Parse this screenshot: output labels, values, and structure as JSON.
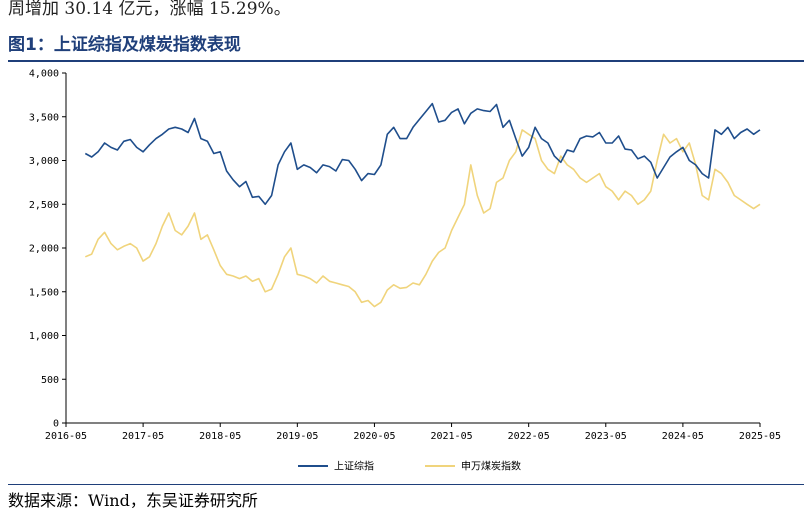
{
  "header": {
    "top_text": "周增加 30.14 亿元，涨幅 15.29%。",
    "figure_title": "图1：上证综指及煤炭指数表现"
  },
  "footer": {
    "source": "数据来源：Wind，东吴证券研究所"
  },
  "chart_data": {
    "type": "line",
    "title": "",
    "xlabel": "",
    "ylabel": "",
    "ylim": [
      0,
      4000
    ],
    "yticks": [
      "0",
      "500",
      "1,000",
      "1,500",
      "2,000",
      "2,500",
      "3,000",
      "3,500",
      "4,000"
    ],
    "xticks": [
      "2016-05",
      "2017-05",
      "2018-05",
      "2019-05",
      "2020-05",
      "2021-05",
      "2022-05",
      "2023-05",
      "2024-05",
      "2025-05"
    ],
    "xlim": [
      "2016-05",
      "2025-05"
    ],
    "grid": false,
    "legend": "bottom",
    "series": [
      {
        "name": "上证综指",
        "color": "#1f4e8c",
        "x": [
          "2016-08",
          "2016-09",
          "2016-10",
          "2016-11",
          "2016-12",
          "2017-01",
          "2017-02",
          "2017-03",
          "2017-04",
          "2017-05",
          "2017-06",
          "2017-07",
          "2017-08",
          "2017-09",
          "2017-10",
          "2017-11",
          "2017-12",
          "2018-01",
          "2018-02",
          "2018-03",
          "2018-04",
          "2018-05",
          "2018-06",
          "2018-07",
          "2018-08",
          "2018-09",
          "2018-10",
          "2018-11",
          "2018-12",
          "2019-01",
          "2019-02",
          "2019-03",
          "2019-04",
          "2019-05",
          "2019-06",
          "2019-07",
          "2019-08",
          "2019-09",
          "2019-10",
          "2019-11",
          "2019-12",
          "2020-01",
          "2020-02",
          "2020-03",
          "2020-04",
          "2020-05",
          "2020-06",
          "2020-07",
          "2020-08",
          "2020-09",
          "2020-10",
          "2020-11",
          "2020-12",
          "2021-01",
          "2021-02",
          "2021-03",
          "2021-04",
          "2021-05",
          "2021-06",
          "2021-07",
          "2021-08",
          "2021-09",
          "2021-10",
          "2021-11",
          "2021-12",
          "2022-01",
          "2022-02",
          "2022-03",
          "2022-04",
          "2022-05",
          "2022-06",
          "2022-07",
          "2022-08",
          "2022-09",
          "2022-10",
          "2022-11",
          "2022-12",
          "2023-01",
          "2023-02",
          "2023-03",
          "2023-04",
          "2023-05",
          "2023-06",
          "2023-07",
          "2023-08",
          "2023-09",
          "2023-10",
          "2023-11",
          "2023-12",
          "2024-01",
          "2024-02",
          "2024-03",
          "2024-04",
          "2024-05",
          "2024-06",
          "2024-07",
          "2024-08",
          "2024-09",
          "2024-10",
          "2024-11",
          "2024-12",
          "2025-01",
          "2025-02",
          "2025-03",
          "2025-04",
          "2025-05"
        ],
        "values": [
          3080,
          3040,
          3100,
          3200,
          3150,
          3120,
          3220,
          3240,
          3150,
          3100,
          3180,
          3250,
          3300,
          3360,
          3380,
          3360,
          3320,
          3480,
          3250,
          3220,
          3080,
          3100,
          2880,
          2780,
          2700,
          2760,
          2580,
          2590,
          2500,
          2600,
          2950,
          3100,
          3200,
          2900,
          2950,
          2920,
          2860,
          2950,
          2930,
          2880,
          3010,
          3000,
          2900,
          2770,
          2850,
          2840,
          2950,
          3300,
          3380,
          3250,
          3250,
          3380,
          3470,
          3560,
          3650,
          3440,
          3460,
          3550,
          3590,
          3420,
          3540,
          3590,
          3570,
          3560,
          3640,
          3380,
          3460,
          3250,
          3050,
          3150,
          3380,
          3250,
          3200,
          3050,
          2980,
          3120,
          3100,
          3250,
          3280,
          3270,
          3320,
          3200,
          3200,
          3280,
          3130,
          3120,
          3020,
          3050,
          2980,
          2800,
          2920,
          3040,
          3100,
          3150,
          3000,
          2950,
          2850,
          2800,
          3350,
          3300,
          3380,
          3250,
          3320,
          3360,
          3300,
          3350
        ]
      },
      {
        "name": "申万煤炭指数",
        "color": "#f0d47c",
        "x": [
          "2016-08",
          "2016-09",
          "2016-10",
          "2016-11",
          "2016-12",
          "2017-01",
          "2017-02",
          "2017-03",
          "2017-04",
          "2017-05",
          "2017-06",
          "2017-07",
          "2017-08",
          "2017-09",
          "2017-10",
          "2017-11",
          "2017-12",
          "2018-01",
          "2018-02",
          "2018-03",
          "2018-04",
          "2018-05",
          "2018-06",
          "2018-07",
          "2018-08",
          "2018-09",
          "2018-10",
          "2018-11",
          "2018-12",
          "2019-01",
          "2019-02",
          "2019-03",
          "2019-04",
          "2019-05",
          "2019-06",
          "2019-07",
          "2019-08",
          "2019-09",
          "2019-10",
          "2019-11",
          "2019-12",
          "2020-01",
          "2020-02",
          "2020-03",
          "2020-04",
          "2020-05",
          "2020-06",
          "2020-07",
          "2020-08",
          "2020-09",
          "2020-10",
          "2020-11",
          "2020-12",
          "2021-01",
          "2021-02",
          "2021-03",
          "2021-04",
          "2021-05",
          "2021-06",
          "2021-07",
          "2021-08",
          "2021-09",
          "2021-10",
          "2021-11",
          "2021-12",
          "2022-01",
          "2022-02",
          "2022-03",
          "2022-04",
          "2022-05",
          "2022-06",
          "2022-07",
          "2022-08",
          "2022-09",
          "2022-10",
          "2022-11",
          "2022-12",
          "2023-01",
          "2023-02",
          "2023-03",
          "2023-04",
          "2023-05",
          "2023-06",
          "2023-07",
          "2023-08",
          "2023-09",
          "2023-10",
          "2023-11",
          "2023-12",
          "2024-01",
          "2024-02",
          "2024-03",
          "2024-04",
          "2024-05",
          "2024-06",
          "2024-07",
          "2024-08",
          "2024-09",
          "2024-10",
          "2024-11",
          "2024-12",
          "2025-01",
          "2025-02",
          "2025-03",
          "2025-04",
          "2025-05"
        ],
        "values": [
          1900,
          1930,
          2100,
          2180,
          2050,
          1980,
          2020,
          2050,
          2000,
          1850,
          1900,
          2050,
          2250,
          2400,
          2200,
          2150,
          2250,
          2400,
          2100,
          2150,
          1980,
          1800,
          1700,
          1680,
          1650,
          1680,
          1620,
          1650,
          1500,
          1530,
          1700,
          1900,
          2000,
          1700,
          1680,
          1650,
          1600,
          1680,
          1620,
          1600,
          1580,
          1560,
          1500,
          1380,
          1400,
          1330,
          1380,
          1520,
          1580,
          1540,
          1550,
          1600,
          1580,
          1700,
          1850,
          1950,
          2000,
          2200,
          2350,
          2500,
          2950,
          2600,
          2400,
          2450,
          2750,
          2800,
          3000,
          3100,
          3350,
          3300,
          3250,
          3000,
          2900,
          2850,
          3050,
          2950,
          2900,
          2800,
          2750,
          2800,
          2850,
          2700,
          2650,
          2550,
          2650,
          2600,
          2500,
          2550,
          2650,
          3000,
          3300,
          3200,
          3250,
          3100,
          3200,
          2950,
          2600,
          2550,
          2900,
          2850,
          2750,
          2600,
          2550,
          2500,
          2450,
          2500
        ]
      }
    ]
  }
}
